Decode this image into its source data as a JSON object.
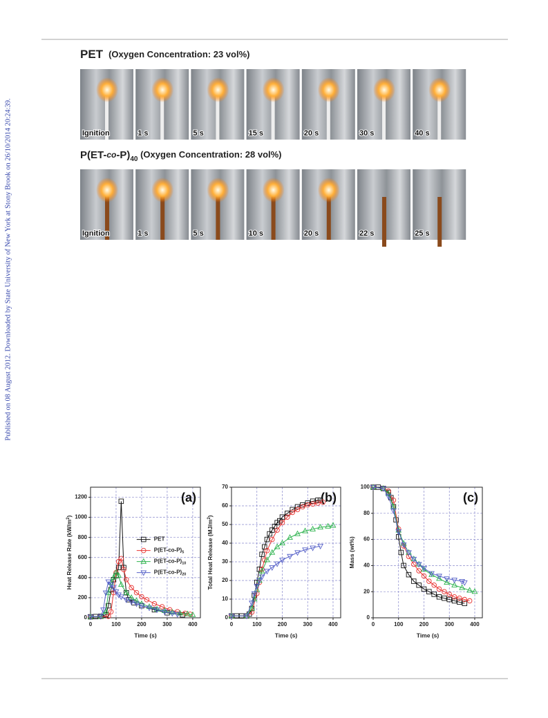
{
  "sidebar": "Published on 08 August 2012. Downloaded by State University of New York at Stony Brook on 26/10/2014 20:24:39.",
  "photo_rows": [
    {
      "title": "PET",
      "subtitle": "(Oxygen Concentration: 23 vol%)",
      "frames": [
        "Ignition",
        "1 s",
        "5 s",
        "15 s",
        "20 s",
        "30 s",
        "40 s"
      ]
    },
    {
      "title_parts": [
        "P(ET-",
        "co",
        "-P)",
        "40",
        " (Oxygen Concentration: 28 vol%)"
      ],
      "frames": [
        "Ignition",
        "1 s",
        "5 s",
        "10 s",
        "20 s",
        "22 s",
        "25 s"
      ]
    }
  ],
  "chart_data": [
    {
      "type": "line",
      "panel": "(a)",
      "xlabel": "Time (s)",
      "ylabel": "Heat Release Rate (kW/m",
      "ylabel_sup": "2",
      "ylabel_end": ")",
      "xlim": [
        0,
        430
      ],
      "xticks": [
        0,
        100,
        200,
        300,
        400
      ],
      "ylim": [
        0,
        1300
      ],
      "yticks": [
        0,
        200,
        400,
        600,
        800,
        1000,
        1200
      ],
      "grid": true,
      "legend": "center right",
      "series": [
        {
          "name": "PET",
          "color": "#111111",
          "marker": "square",
          "x": [
            0,
            20,
            40,
            60,
            70,
            80,
            90,
            100,
            110,
            120,
            130,
            140,
            150,
            170,
            200,
            250,
            300,
            360
          ],
          "values": [
            10,
            12,
            15,
            30,
            120,
            280,
            380,
            420,
            500,
            1160,
            500,
            250,
            180,
            150,
            120,
            80,
            50,
            30
          ]
        },
        {
          "name": "P(ET-co-P)",
          "subscript": "5",
          "color": "#e8312f",
          "marker": "circle",
          "x": [
            0,
            40,
            70,
            80,
            90,
            100,
            110,
            120,
            130,
            140,
            160,
            180,
            200,
            220,
            250,
            280,
            310,
            340,
            370,
            390
          ],
          "values": [
            10,
            12,
            15,
            60,
            250,
            450,
            560,
            590,
            480,
            380,
            300,
            250,
            210,
            180,
            140,
            110,
            80,
            60,
            45,
            35
          ]
        },
        {
          "name": "P(ET-co-P)",
          "subscript": "10",
          "color": "#2bb24c",
          "marker": "triangle-up",
          "x": [
            0,
            40,
            60,
            70,
            80,
            90,
            100,
            110,
            120,
            140,
            160,
            180,
            200,
            230,
            260,
            290,
            320,
            350,
            380,
            400
          ],
          "values": [
            10,
            12,
            60,
            250,
            350,
            400,
            450,
            420,
            330,
            250,
            200,
            170,
            140,
            110,
            85,
            70,
            55,
            45,
            38,
            30
          ]
        },
        {
          "name": "P(ET-co-P)",
          "subscript": "20",
          "color": "#5560c8",
          "marker": "triangle-down",
          "x": [
            0,
            40,
            50,
            60,
            70,
            80,
            90,
            100,
            110,
            120,
            140,
            160,
            180,
            200,
            230,
            260,
            290,
            320,
            340
          ],
          "values": [
            10,
            15,
            80,
            250,
            360,
            330,
            300,
            260,
            230,
            210,
            180,
            160,
            140,
            120,
            100,
            80,
            60,
            45,
            35
          ]
        }
      ]
    },
    {
      "type": "line",
      "panel": "(b)",
      "xlabel": "Time (s)",
      "ylabel": "Total Heat Release (MJ/m",
      "ylabel_sup": "2",
      "ylabel_end": ")",
      "xlim": [
        0,
        430
      ],
      "xticks": [
        0,
        100,
        200,
        300,
        400
      ],
      "ylim": [
        0,
        70
      ],
      "yticks": [
        0,
        10,
        20,
        30,
        40,
        50,
        60,
        70
      ],
      "grid": true,
      "series": [
        {
          "color": "#111111",
          "marker": "square",
          "x": [
            0,
            20,
            40,
            60,
            70,
            80,
            90,
            100,
            110,
            120,
            130,
            140,
            150,
            160,
            170,
            180,
            190,
            200,
            220,
            240,
            260,
            280,
            300,
            320,
            340,
            350
          ],
          "values": [
            1,
            1,
            1,
            1,
            2,
            5,
            12,
            19,
            26,
            34,
            38,
            42,
            45,
            47,
            49,
            51,
            52,
            54,
            56,
            58,
            59.5,
            60.5,
            61.5,
            62.5,
            63,
            63
          ]
        },
        {
          "color": "#e8312f",
          "marker": "circle",
          "x": [
            0,
            60,
            80,
            100,
            110,
            120,
            130,
            140,
            160,
            180,
            200,
            220,
            240,
            260,
            280,
            300,
            320,
            340,
            360
          ],
          "values": [
            1,
            1,
            3,
            13,
            19,
            26,
            31,
            36,
            42,
            47,
            51,
            54,
            56.5,
            58,
            59.5,
            60.5,
            61,
            61.5,
            62
          ]
        },
        {
          "color": "#2bb24c",
          "marker": "triangle-up",
          "x": [
            0,
            60,
            80,
            90,
            100,
            110,
            120,
            140,
            160,
            180,
            200,
            230,
            260,
            290,
            320,
            350,
            380,
            400
          ],
          "values": [
            1,
            1,
            5,
            10,
            15,
            20,
            25,
            31,
            35,
            38,
            40,
            43,
            45,
            46.5,
            47.5,
            48.5,
            49,
            49.5
          ]
        },
        {
          "color": "#5560c8",
          "marker": "triangle-down",
          "x": [
            0,
            60,
            80,
            90,
            100,
            110,
            120,
            140,
            160,
            180,
            200,
            230,
            260,
            290,
            320,
            350
          ],
          "values": [
            1,
            1,
            8,
            13,
            17,
            20,
            22,
            25,
            27,
            29,
            31,
            33,
            35,
            36.5,
            37.5,
            38.5
          ]
        }
      ]
    },
    {
      "type": "line",
      "panel": "(c)",
      "xlabel": "Time (s)",
      "ylabel": "Mass (wt%)",
      "xlim": [
        0,
        430
      ],
      "xticks": [
        0,
        100,
        200,
        300,
        400
      ],
      "ylim": [
        0,
        100
      ],
      "yticks": [
        0,
        20,
        40,
        60,
        80,
        100
      ],
      "grid": true,
      "series": [
        {
          "color": "#111111",
          "marker": "square",
          "x": [
            0,
            20,
            40,
            60,
            70,
            80,
            90,
            100,
            110,
            120,
            140,
            160,
            180,
            200,
            220,
            240,
            260,
            280,
            300,
            320,
            340,
            360
          ],
          "values": [
            100,
            100,
            99,
            96,
            92,
            85,
            75,
            62,
            50,
            40,
            33,
            28,
            25,
            22,
            20,
            18,
            16,
            15,
            14,
            13,
            12,
            11
          ]
        },
        {
          "color": "#e8312f",
          "marker": "circle",
          "x": [
            0,
            40,
            60,
            80,
            100,
            120,
            140,
            160,
            180,
            200,
            220,
            240,
            260,
            280,
            300,
            320,
            340,
            360,
            380
          ],
          "values": [
            100,
            99,
            97,
            90,
            68,
            55,
            47,
            41,
            36,
            32,
            28,
            25,
            22,
            20,
            18,
            16,
            15,
            14,
            13
          ]
        },
        {
          "color": "#2bb24c",
          "marker": "triangle-up",
          "x": [
            0,
            40,
            60,
            80,
            100,
            120,
            140,
            160,
            180,
            200,
            230,
            260,
            290,
            320,
            350,
            380,
            400
          ],
          "values": [
            100,
            99,
            95,
            85,
            67,
            57,
            50,
            45,
            41,
            37,
            33,
            30,
            27,
            25,
            23,
            21,
            20
          ]
        },
        {
          "color": "#5560c8",
          "marker": "triangle-down",
          "x": [
            0,
            40,
            60,
            80,
            100,
            120,
            140,
            160,
            180,
            200,
            230,
            260,
            290,
            320,
            350,
            360
          ],
          "values": [
            100,
            99,
            93,
            82,
            66,
            56,
            50,
            45,
            41,
            38,
            34,
            32,
            30,
            29,
            28,
            27
          ]
        }
      ]
    }
  ]
}
